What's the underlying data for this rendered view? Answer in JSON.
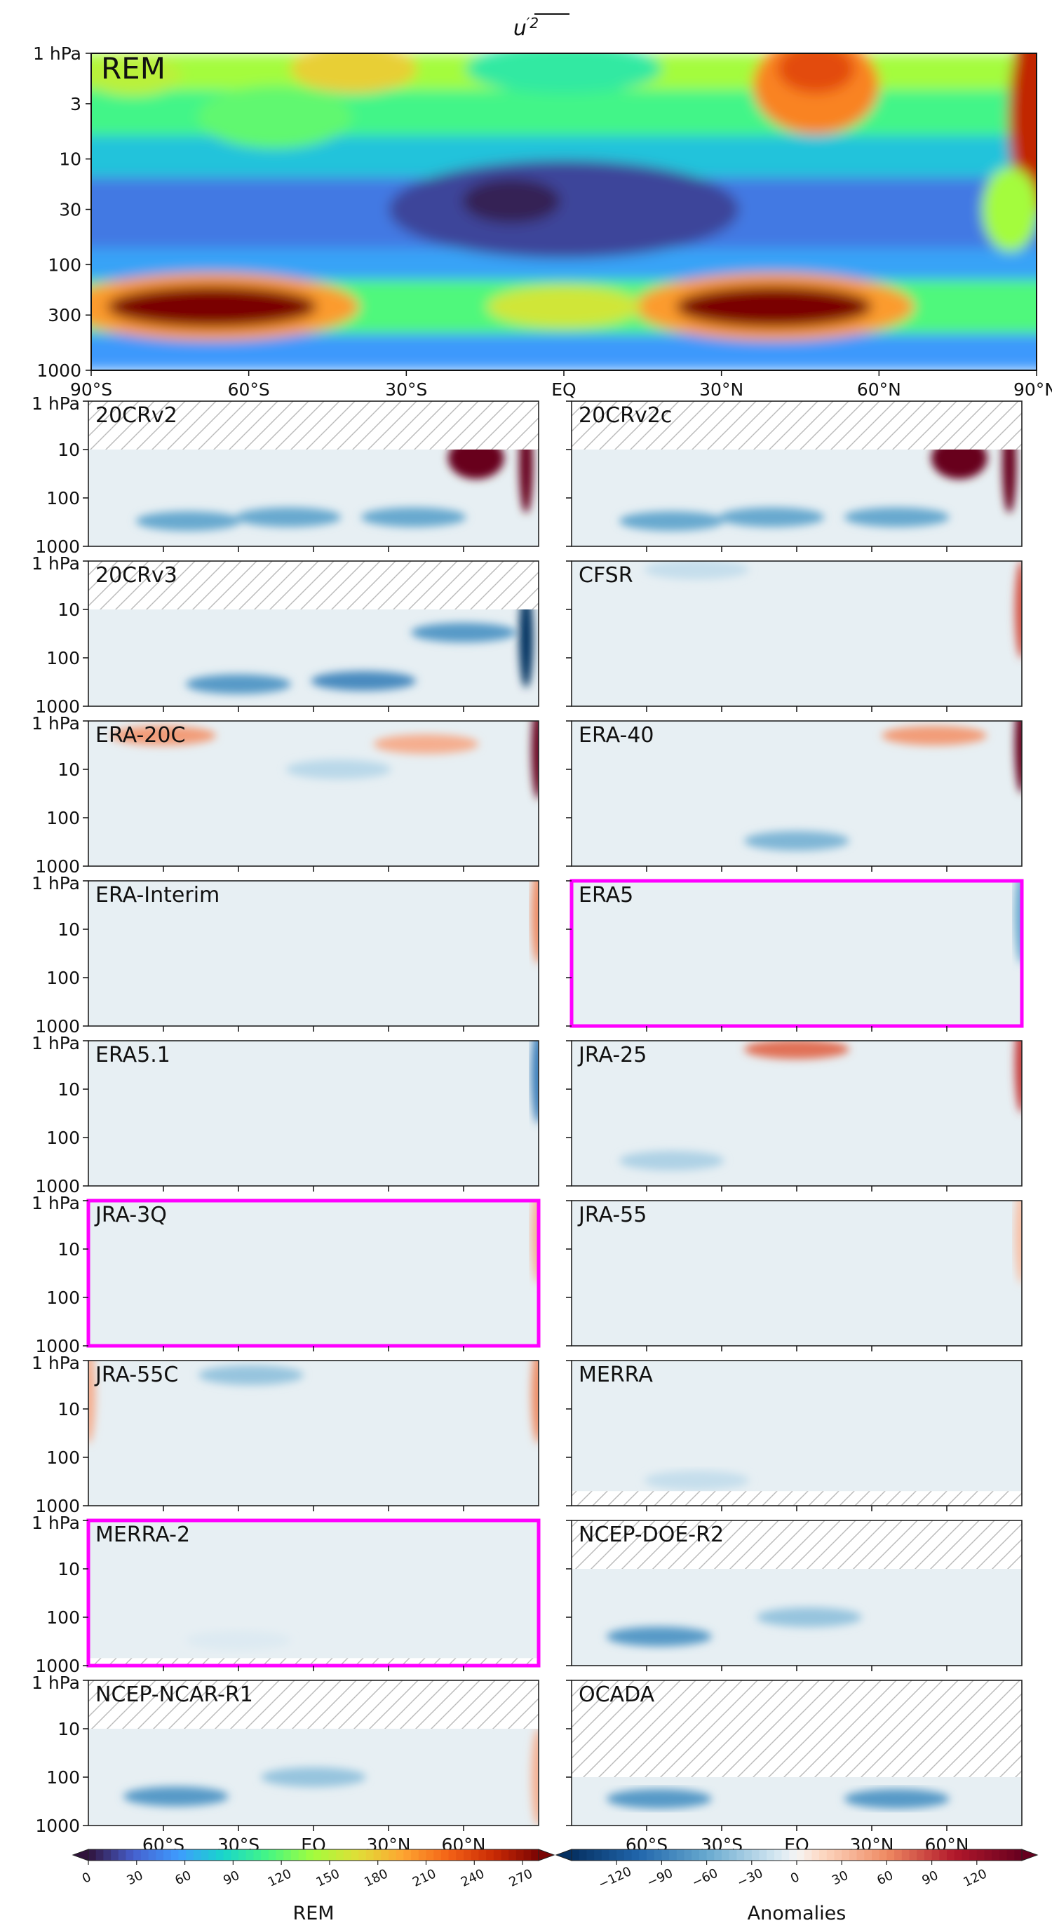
{
  "figure": {
    "title_base": "u",
    "title_sup": "′2"
  },
  "chart_data": [
    {
      "type": "heatmap",
      "name": "REM",
      "label": "REM",
      "highlighted": false,
      "x_ticks": [
        "90°S",
        "60°S",
        "30°S",
        "EQ",
        "30°N",
        "60°N",
        "90°N"
      ],
      "x_tick_values": [
        -90,
        -60,
        -30,
        0,
        30,
        60,
        90
      ],
      "y_ticks": [
        "1 hPa",
        "3",
        "10",
        "30",
        "100",
        "300",
        "1000"
      ],
      "y_tick_values": [
        1,
        3,
        10,
        30,
        100,
        300,
        1000
      ],
      "y_scale": "log",
      "xlim": [
        -90,
        90
      ],
      "ylim": [
        1000,
        1
      ],
      "features": [
        {
          "lat": -67,
          "p": 250,
          "value": 280
        },
        {
          "lat": 40,
          "p": 250,
          "value": 280
        },
        {
          "lat": 48,
          "p": 1.5,
          "value": 230
        },
        {
          "lat": 90,
          "p": 4,
          "value": 255
        },
        {
          "lat": -10,
          "p": 25,
          "value": 5
        },
        {
          "lat": 0,
          "p": 250,
          "value": 160
        }
      ]
    },
    {
      "type": "heatmap",
      "name": "anomaly panels",
      "x_ticks": [
        "60°S",
        "30°S",
        "EQ",
        "30°N",
        "60°N"
      ],
      "x_tick_values": [
        -60,
        -30,
        0,
        30,
        60
      ],
      "y_ticks": [
        "1 hPa",
        "10",
        "100",
        "1000"
      ],
      "y_tick_values": [
        1,
        10,
        100,
        1000
      ],
      "y_scale": "log",
      "panels": [
        {
          "label": "20CRv2",
          "highlighted": false,
          "hatch_top": 10,
          "hatch_bottom": null,
          "features": [
            {
              "lat": 65,
              "p": 15,
              "value": 150
            },
            {
              "lat": 85,
              "p": 20,
              "value": 150
            },
            {
              "lat": -50,
              "p": 300,
              "value": -60
            },
            {
              "lat": -10,
              "p": 250,
              "value": -60
            },
            {
              "lat": 40,
              "p": 250,
              "value": -60
            }
          ]
        },
        {
          "label": "20CRv2c",
          "highlighted": false,
          "hatch_top": 10,
          "hatch_bottom": null,
          "features": [
            {
              "lat": 65,
              "p": 15,
              "value": 150
            },
            {
              "lat": 85,
              "p": 20,
              "value": 150
            },
            {
              "lat": -50,
              "p": 300,
              "value": -60
            },
            {
              "lat": -10,
              "p": 250,
              "value": -60
            },
            {
              "lat": 40,
              "p": 250,
              "value": -60
            }
          ]
        },
        {
          "label": "20CRv3",
          "highlighted": false,
          "hatch_top": 10,
          "hatch_bottom": null,
          "features": [
            {
              "lat": 85,
              "p": 40,
              "value": -150
            },
            {
              "lat": 60,
              "p": 30,
              "value": -70
            },
            {
              "lat": -30,
              "p": 350,
              "value": -70
            },
            {
              "lat": 20,
              "p": 300,
              "value": -80
            }
          ]
        },
        {
          "label": "CFSR",
          "highlighted": false,
          "hatch_top": null,
          "hatch_bottom": null,
          "features": [
            {
              "lat": 90,
              "p": 10,
              "value": 80
            },
            {
              "lat": -40,
              "p": 1.5,
              "value": -20
            }
          ]
        },
        {
          "label": "ERA-20C",
          "highlighted": false,
          "hatch_top": null,
          "hatch_bottom": null,
          "features": [
            {
              "lat": 90,
              "p": 4,
              "value": 150
            },
            {
              "lat": -60,
              "p": 2,
              "value": 50
            },
            {
              "lat": 45,
              "p": 3,
              "value": 40
            },
            {
              "lat": 10,
              "p": 10,
              "value": -25
            }
          ]
        },
        {
          "label": "ERA-40",
          "highlighted": false,
          "hatch_top": null,
          "hatch_bottom": null,
          "features": [
            {
              "lat": 90,
              "p": 3,
              "value": 150
            },
            {
              "lat": 55,
              "p": 2,
              "value": 50
            },
            {
              "lat": 0,
              "p": 300,
              "value": -50
            }
          ]
        },
        {
          "label": "ERA-Interim",
          "highlighted": false,
          "hatch_top": null,
          "hatch_bottom": null,
          "features": [
            {
              "lat": 90,
              "p": 5,
              "value": 60
            }
          ]
        },
        {
          "label": "ERA5",
          "highlighted": true,
          "hatch_top": null,
          "hatch_bottom": null,
          "features": [
            {
              "lat": 90,
              "p": 5,
              "value": -60
            }
          ]
        },
        {
          "label": "ERA5.1",
          "highlighted": false,
          "hatch_top": null,
          "hatch_bottom": null,
          "features": [
            {
              "lat": 90,
              "p": 5,
              "value": -90
            }
          ]
        },
        {
          "label": "JRA-25",
          "highlighted": false,
          "hatch_top": null,
          "hatch_bottom": null,
          "features": [
            {
              "lat": 0,
              "p": 1.5,
              "value": 70
            },
            {
              "lat": 90,
              "p": 3,
              "value": 90
            },
            {
              "lat": -50,
              "p": 300,
              "value": -30
            }
          ]
        },
        {
          "label": "JRA-3Q",
          "highlighted": true,
          "hatch_top": null,
          "hatch_bottom": null,
          "features": [
            {
              "lat": 90,
              "p": 5,
              "value": 40
            }
          ]
        },
        {
          "label": "JRA-55",
          "highlighted": false,
          "hatch_top": null,
          "hatch_bottom": null,
          "features": [
            {
              "lat": 90,
              "p": 5,
              "value": 30
            }
          ]
        },
        {
          "label": "JRA-55C",
          "highlighted": false,
          "hatch_top": null,
          "hatch_bottom": null,
          "features": [
            {
              "lat": -25,
              "p": 2,
              "value": -40
            },
            {
              "lat": 90,
              "p": 5,
              "value": 60
            },
            {
              "lat": -90,
              "p": 5,
              "value": 40
            }
          ]
        },
        {
          "label": "MERRA",
          "highlighted": false,
          "hatch_top": null,
          "hatch_bottom": 500,
          "features": [
            {
              "lat": -40,
              "p": 300,
              "value": -20
            }
          ]
        },
        {
          "label": "MERRA-2",
          "highlighted": true,
          "hatch_top": null,
          "hatch_bottom": 700,
          "features": [
            {
              "lat": -30,
              "p": 300,
              "value": -10
            }
          ]
        },
        {
          "label": "NCEP-DOE-R2",
          "highlighted": false,
          "hatch_top": 10,
          "hatch_bottom": null,
          "features": [
            {
              "lat": -55,
              "p": 250,
              "value": -70
            },
            {
              "lat": 5,
              "p": 100,
              "value": -40
            }
          ]
        },
        {
          "label": "NCEP-NCAR-R1",
          "highlighted": false,
          "hatch_top": 10,
          "hatch_bottom": null,
          "features": [
            {
              "lat": -55,
              "p": 250,
              "value": -70
            },
            {
              "lat": 0,
              "p": 100,
              "value": -40
            },
            {
              "lat": 90,
              "p": 100,
              "value": 40
            }
          ]
        },
        {
          "label": "OCADA",
          "highlighted": false,
          "hatch_top": 100,
          "hatch_bottom": null,
          "features": [
            {
              "lat": -55,
              "p": 280,
              "value": -70
            },
            {
              "lat": 40,
              "p": 280,
              "value": -70
            }
          ]
        }
      ]
    },
    {
      "type": "colorbar",
      "name": "REM colorbar",
      "label": "REM",
      "ticks": [
        0,
        30,
        60,
        90,
        120,
        150,
        180,
        210,
        240,
        270
      ],
      "range": [
        0,
        280
      ],
      "colormap": "turbo"
    },
    {
      "type": "colorbar",
      "name": "Anomalies colorbar",
      "label": "Anomalies",
      "ticks": [
        -120,
        -90,
        -60,
        -30,
        0,
        30,
        60,
        90,
        120
      ],
      "range": [
        -150,
        150
      ],
      "colormap": "RdBu_r"
    }
  ],
  "colors": {
    "highlight": "#ff00ff",
    "hatch": "#bbbbbb",
    "frame": "#222222"
  }
}
